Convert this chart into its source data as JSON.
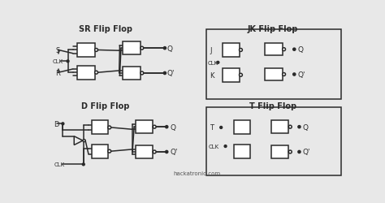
{
  "bg_color": "#e8e8e8",
  "title_sr": "SR Flip Flop",
  "title_jk": "JK Flip Flop",
  "title_d": "D Flip Flop",
  "title_t": "T Flip Flop",
  "watermark": "hackatronic.com",
  "lc": "#2a2a2a",
  "lw": 1.1,
  "fig_w": 4.74,
  "fig_h": 2.51,
  "dpi": 100
}
